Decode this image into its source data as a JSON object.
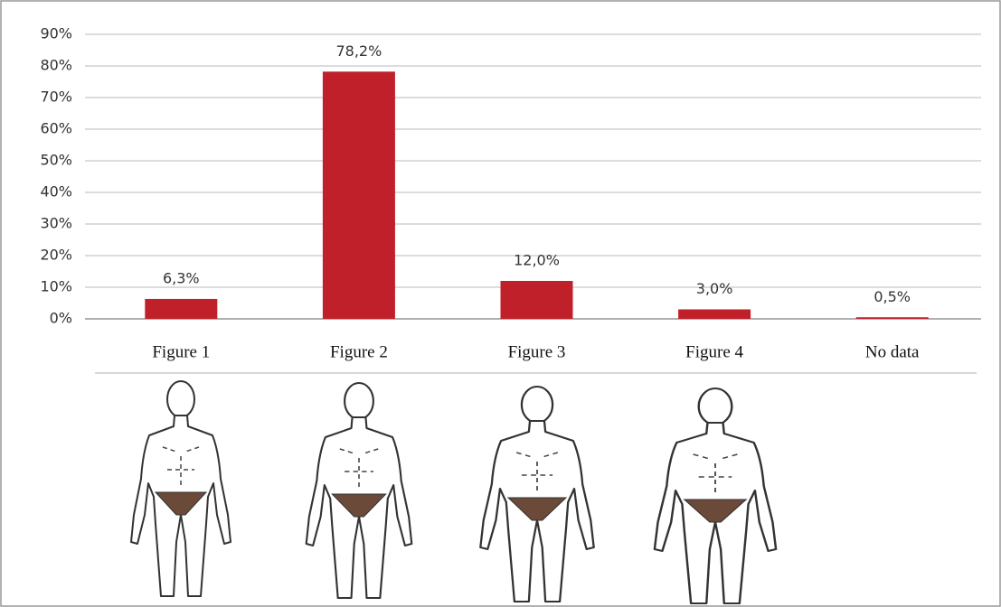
{
  "chart_data": {
    "type": "bar",
    "categories": [
      "Figure 1",
      "Figure 2",
      "Figure 3",
      "Figure 4",
      "No data"
    ],
    "values": [
      6.3,
      78.2,
      12.0,
      3.0,
      0.5
    ],
    "value_labels": [
      "6,3%",
      "78,2%",
      "12,0%",
      "3,0%",
      "0,5%"
    ],
    "color": "#c0202a",
    "ylim": [
      0,
      90
    ],
    "yticks": [
      {
        "value": 0,
        "label": "0%"
      },
      {
        "value": 10,
        "label": "10%"
      },
      {
        "value": 20,
        "label": "20%"
      },
      {
        "value": 30,
        "label": "30%"
      },
      {
        "value": 40,
        "label": "40%"
      },
      {
        "value": 50,
        "label": "50%"
      },
      {
        "value": 60,
        "label": "60%"
      },
      {
        "value": 70,
        "label": "70%"
      },
      {
        "value": 80,
        "label": "80%"
      },
      {
        "value": 90,
        "label": "90%"
      }
    ],
    "grid": true
  }
}
